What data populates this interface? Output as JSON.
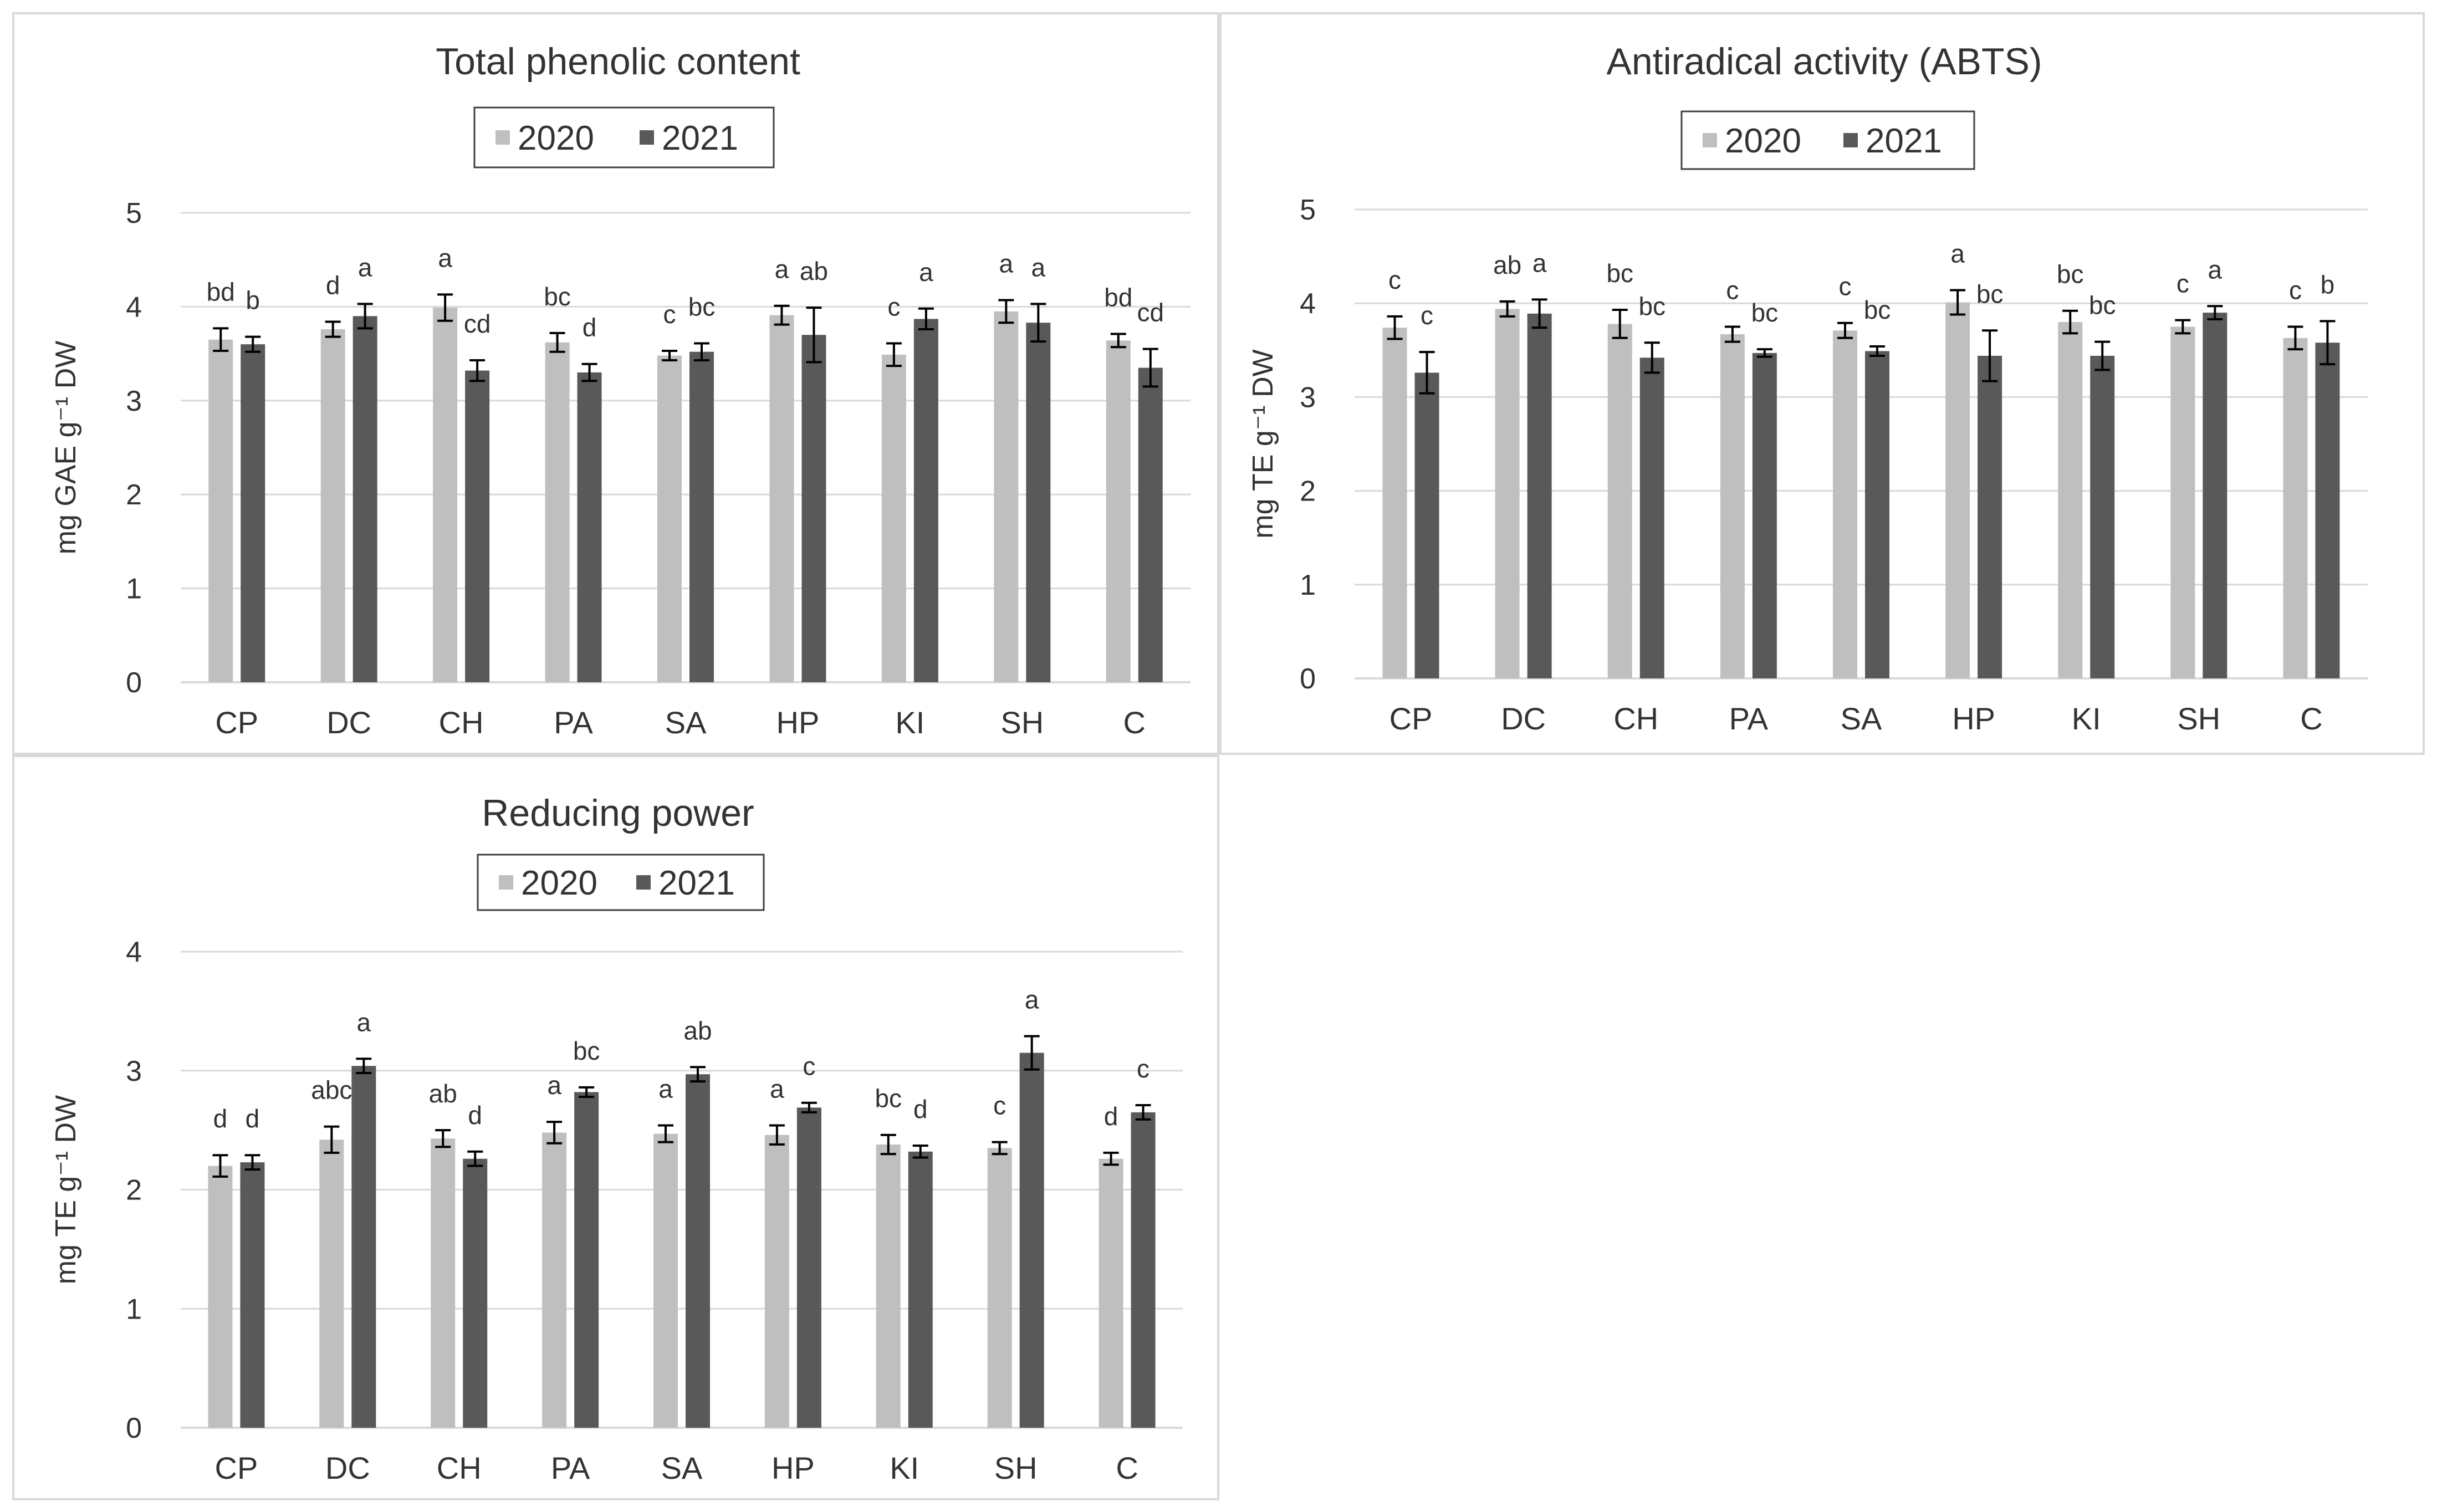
{
  "colors": {
    "y2020": "#bfbfbf",
    "y2021": "#595959",
    "grid": "#d9d9d9",
    "text": "#333333",
    "errorbar": "#000000"
  },
  "legend_labels": [
    "2020",
    "2021"
  ],
  "chart_data": [
    {
      "type": "bar",
      "title": "Total phenolic content",
      "ylabel": "mg GAE g⁻¹ DW",
      "ylim": [
        0,
        5
      ],
      "yticks": [
        0,
        1,
        2,
        3,
        4,
        5
      ],
      "grid": true,
      "legend_position": "top-center",
      "categories": [
        "CP",
        "DC",
        "CH",
        "PA",
        "SA",
        "HP",
        "KI",
        "SH",
        "C"
      ],
      "series": [
        {
          "name": "2020",
          "values": [
            3.65,
            3.76,
            3.99,
            3.62,
            3.48,
            3.91,
            3.49,
            3.95,
            3.64
          ],
          "errors": [
            0.12,
            0.08,
            0.14,
            0.1,
            0.05,
            0.1,
            0.12,
            0.12,
            0.07
          ],
          "letters": [
            "bd",
            "d",
            "a",
            "bc",
            "c",
            "a",
            "c",
            "a",
            "bd"
          ]
        },
        {
          "name": "2021",
          "values": [
            3.6,
            3.9,
            3.32,
            3.3,
            3.52,
            3.7,
            3.87,
            3.83,
            3.35
          ],
          "errors": [
            0.08,
            0.13,
            0.11,
            0.09,
            0.09,
            0.29,
            0.11,
            0.2,
            0.2
          ],
          "letters": [
            "b",
            "a",
            "cd",
            "d",
            "bc",
            "ab",
            "a",
            "a",
            "cd"
          ]
        }
      ]
    },
    {
      "type": "bar",
      "title": "Antiradical activity (ABTS)",
      "ylabel": "mg TE g⁻¹ DW",
      "ylim": [
        0,
        5
      ],
      "yticks": [
        0,
        1,
        2,
        3,
        4,
        5
      ],
      "grid": true,
      "legend_position": "top-center",
      "categories": [
        "CP",
        "DC",
        "CH",
        "PA",
        "SA",
        "HP",
        "KI",
        "SH",
        "C"
      ],
      "series": [
        {
          "name": "2020",
          "values": [
            3.74,
            3.94,
            3.78,
            3.67,
            3.71,
            4.01,
            3.8,
            3.75,
            3.63
          ],
          "errors": [
            0.12,
            0.08,
            0.15,
            0.08,
            0.08,
            0.13,
            0.12,
            0.07,
            0.12
          ],
          "letters": [
            "c",
            "ab",
            "bc",
            "c",
            "c",
            "a",
            "bc",
            "c",
            "c"
          ]
        },
        {
          "name": "2021",
          "values": [
            3.26,
            3.89,
            3.42,
            3.47,
            3.49,
            3.44,
            3.44,
            3.9,
            3.58
          ],
          "errors": [
            0.22,
            0.15,
            0.16,
            0.04,
            0.05,
            0.27,
            0.15,
            0.07,
            0.23
          ],
          "letters": [
            "c",
            "a",
            "bc",
            "bc",
            "bc",
            "bc",
            "bc",
            "a",
            "b"
          ]
        }
      ]
    },
    {
      "type": "bar",
      "title": "Reducing power",
      "ylabel": "mg TE g⁻¹ DW",
      "ylim": [
        0,
        4
      ],
      "yticks": [
        0,
        1,
        2,
        3,
        4
      ],
      "grid": true,
      "legend_position": "top-center",
      "categories": [
        "CP",
        "DC",
        "CH",
        "PA",
        "SA",
        "HP",
        "KI",
        "SH",
        "C"
      ],
      "series": [
        {
          "name": "2020",
          "values": [
            2.2,
            2.42,
            2.43,
            2.48,
            2.47,
            2.46,
            2.38,
            2.35,
            2.26
          ],
          "errors": [
            0.09,
            0.11,
            0.07,
            0.09,
            0.07,
            0.08,
            0.08,
            0.05,
            0.05
          ],
          "letters": [
            "d",
            "abc",
            "ab",
            "a",
            "a",
            "a",
            "bc",
            "c",
            "d"
          ]
        },
        {
          "name": "2021",
          "values": [
            2.23,
            3.04,
            2.26,
            2.82,
            2.97,
            2.69,
            2.32,
            3.15,
            2.65
          ],
          "errors": [
            0.06,
            0.06,
            0.06,
            0.04,
            0.06,
            0.04,
            0.05,
            0.14,
            0.06
          ],
          "letters": [
            "d",
            "a",
            "d",
            "bc",
            "ab",
            "c",
            "d",
            "a",
            "c"
          ]
        }
      ]
    }
  ]
}
